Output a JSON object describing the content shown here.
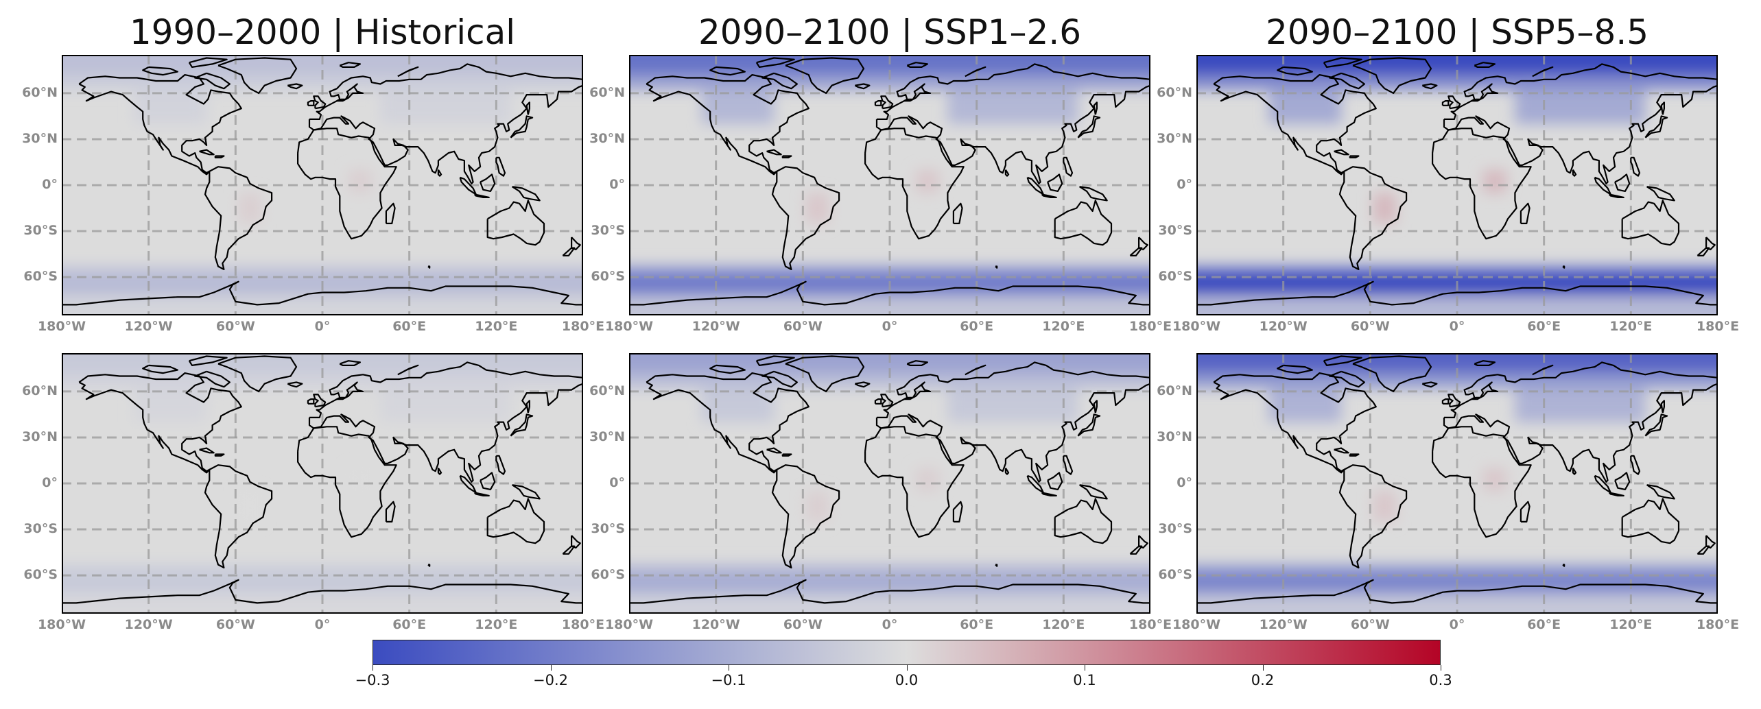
{
  "titles": [
    "1990–2000 | Historical",
    "2090–2100 | SSP1–2.6",
    "2090–2100 | SSP5–8.5"
  ],
  "lat_ticks": [
    "60°N",
    "30°N",
    "0°",
    "30°S",
    "60°S"
  ],
  "lon_ticks": [
    "180°W",
    "120°W",
    "60°W",
    "0°",
    "60°E",
    "120°E",
    "180°E"
  ],
  "colorbar": {
    "ticks": [
      "−0.3",
      "−0.2",
      "−0.1",
      "0.0",
      "0.1",
      "0.2",
      "0.3"
    ],
    "min": -0.3,
    "max": 0.3,
    "colormap": "coolwarm",
    "colors": {
      "low": "#3b4cc0",
      "mid": "#dddddd",
      "high": "#b40426"
    }
  },
  "map_style": {
    "background": "#dcdcdc",
    "coastline": "#000000",
    "gridlines": "dashed gray"
  },
  "panels": [
    {
      "row": 1,
      "col": 1,
      "arctic": -0.06,
      "southern_ocean": -0.07,
      "land_warm": 0.02
    },
    {
      "row": 1,
      "col": 2,
      "arctic": -0.22,
      "southern_ocean": -0.2,
      "land_warm": 0.03
    },
    {
      "row": 1,
      "col": 3,
      "arctic": -0.3,
      "southern_ocean": -0.3,
      "land_warm": 0.05
    },
    {
      "row": 2,
      "col": 1,
      "arctic": -0.04,
      "southern_ocean": -0.04,
      "land_warm": 0.0
    },
    {
      "row": 2,
      "col": 2,
      "arctic": -0.12,
      "southern_ocean": -0.1,
      "land_warm": 0.02
    },
    {
      "row": 2,
      "col": 3,
      "arctic": -0.25,
      "southern_ocean": -0.18,
      "land_warm": 0.03
    }
  ]
}
